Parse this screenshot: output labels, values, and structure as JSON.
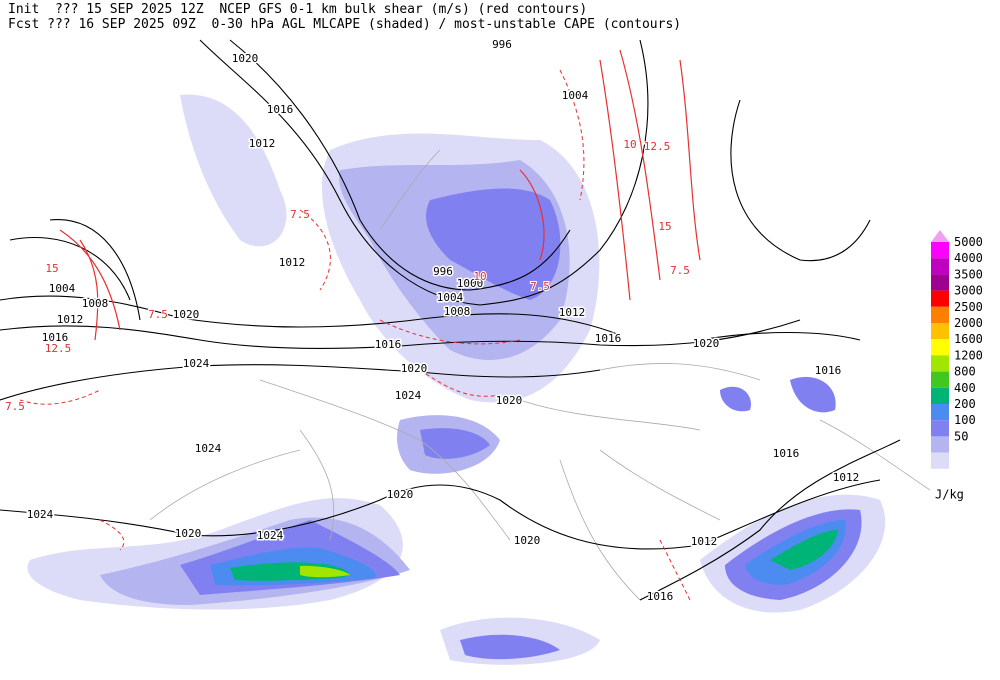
{
  "header": {
    "line1": "Init  ??? 15 SEP 2025 12Z  NCEP GFS 0-1 km bulk shear (m/s) (red contours)",
    "line2": "Fcst ??? 16 SEP 2025 09Z  0-30 hPa AGL MLCAPE (shaded) / most-unstable CAPE (contours)"
  },
  "pressure_labels": [
    "1020",
    "1016",
    "1012",
    "996",
    "1004",
    "1012",
    "996",
    "1000",
    "1004",
    "1008",
    "1012",
    "1016",
    "1016",
    "1020",
    "1020",
    "1024",
    "1020",
    "1024",
    "1020",
    "1016",
    "1016",
    "1012",
    "1024",
    "1020",
    "1024",
    "1020",
    "1024",
    "1020",
    "1012",
    "1016",
    "1004",
    "1008",
    "1012",
    "1016"
  ],
  "shear_labels": [
    "15",
    "7.5",
    "12.5",
    "7.5",
    "10",
    "12.5",
    "15",
    "7.5",
    "7.5",
    "10",
    "7.5"
  ],
  "legend": {
    "unit": "J/kg",
    "levels": [
      {
        "label": "5000",
        "color": "#ff00ff"
      },
      {
        "label": "4000",
        "color": "#c000c0"
      },
      {
        "label": "3500",
        "color": "#a00090"
      },
      {
        "label": "3000",
        "color": "#ff0000"
      },
      {
        "label": "2500",
        "color": "#ff8000"
      },
      {
        "label": "2000",
        "color": "#ffc000"
      },
      {
        "label": "1600",
        "color": "#ffff00"
      },
      {
        "label": "1200",
        "color": "#a0e600"
      },
      {
        "label": "800",
        "color": "#40c820"
      },
      {
        "label": "400",
        "color": "#00b478"
      },
      {
        "label": "200",
        "color": "#4c8cf0"
      },
      {
        "label": "100",
        "color": "#8080f0"
      },
      {
        "label": "50",
        "color": "#b4b4f0"
      }
    ],
    "bottom_color": "#dcdcf8",
    "top_color": "#f0a0f0"
  }
}
